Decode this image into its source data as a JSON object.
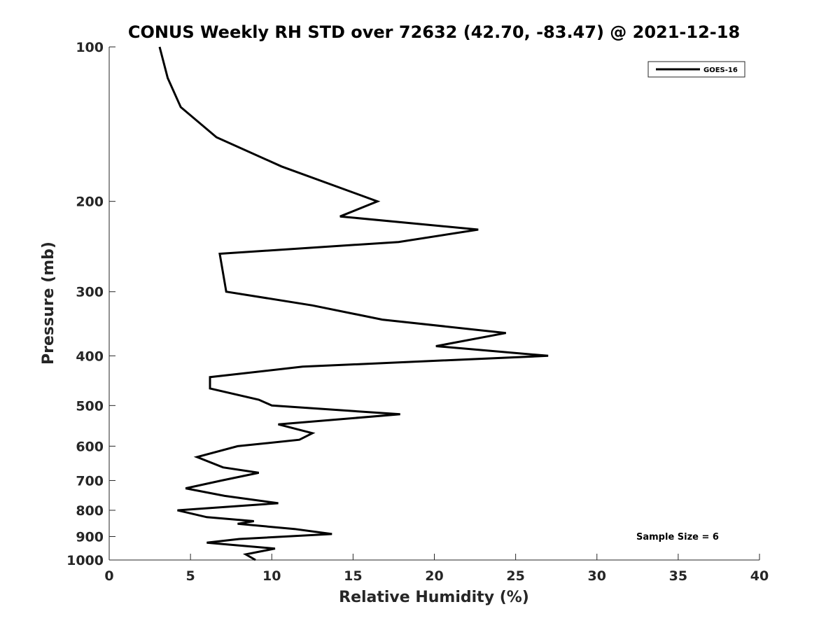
{
  "chart_data": {
    "type": "line",
    "title": "CONUS Weekly RH STD over 72632 (42.70, -83.47) @ 2021-12-18",
    "xlabel": "Relative Humidity (%)",
    "ylabel": "Pressure (mb)",
    "xlim": [
      0,
      40
    ],
    "ylim": [
      100,
      1000
    ],
    "y_scale": "log",
    "y_reversed": true,
    "xticks": [
      0,
      5,
      10,
      15,
      20,
      25,
      30,
      35,
      40
    ],
    "yticks": [
      100,
      200,
      300,
      400,
      500,
      600,
      700,
      800,
      900,
      1000
    ],
    "grid": false,
    "legend_position": "top-right",
    "annotation": "Sample Size = 6",
    "line_color": "#000000",
    "series": [
      {
        "name": "GOES-16",
        "points": [
          [
            3.1,
            100
          ],
          [
            3.6,
            115
          ],
          [
            4.4,
            131
          ],
          [
            6.6,
            150
          ],
          [
            10.6,
            171
          ],
          [
            16.5,
            200
          ],
          [
            14.2,
            214
          ],
          [
            22.7,
            227
          ],
          [
            17.8,
            240
          ],
          [
            6.8,
            253
          ],
          [
            7.2,
            300
          ],
          [
            12.5,
            319
          ],
          [
            16.8,
            340
          ],
          [
            24.4,
            361
          ],
          [
            20.1,
            383
          ],
          [
            27.0,
            400
          ],
          [
            11.9,
            420
          ],
          [
            6.2,
            440
          ],
          [
            6.2,
            463
          ],
          [
            9.2,
            487
          ],
          [
            10.0,
            500
          ],
          [
            17.9,
            520
          ],
          [
            10.4,
            544
          ],
          [
            12.5,
            566
          ],
          [
            11.7,
            583
          ],
          [
            7.9,
            600
          ],
          [
            5.4,
            630
          ],
          [
            7.0,
            660
          ],
          [
            9.2,
            676
          ],
          [
            6.9,
            700
          ],
          [
            4.7,
            725
          ],
          [
            7.1,
            750
          ],
          [
            10.4,
            775
          ],
          [
            4.2,
            800
          ],
          [
            6.0,
            825
          ],
          [
            8.9,
            840
          ],
          [
            7.9,
            850
          ],
          [
            11.4,
            870
          ],
          [
            13.7,
            890
          ],
          [
            8.0,
            910
          ],
          [
            6.0,
            925
          ],
          [
            10.2,
            950
          ],
          [
            8.4,
            975
          ],
          [
            9.0,
            1000
          ]
        ]
      }
    ]
  }
}
